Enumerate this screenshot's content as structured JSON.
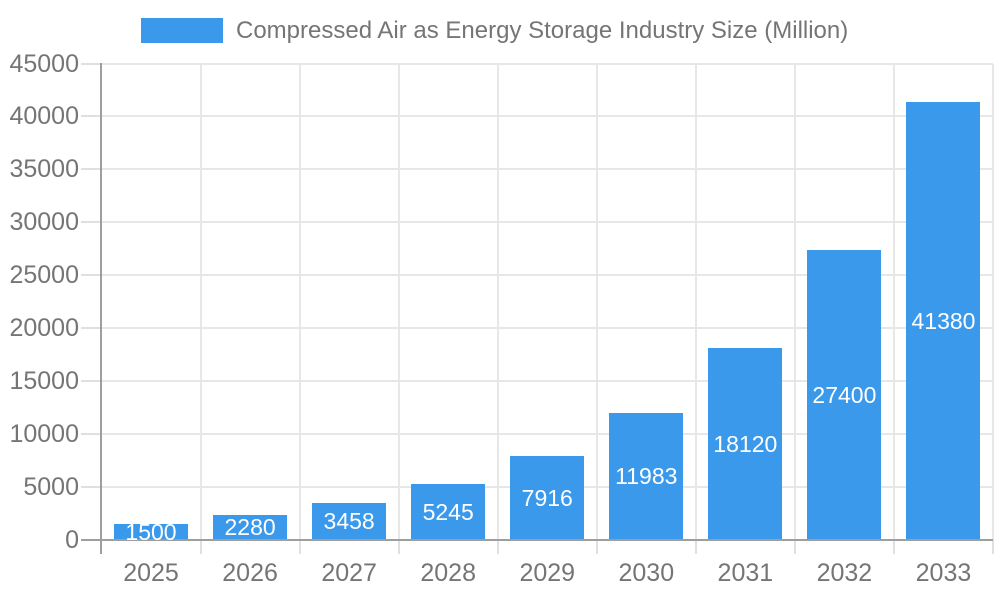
{
  "legend": {
    "label": "Compressed Air as Energy Storage Industry Size (Million)"
  },
  "chart_data": {
    "type": "bar",
    "title": "Compressed Air as Energy Storage Industry Size (Million)",
    "categories": [
      "2025",
      "2026",
      "2027",
      "2028",
      "2029",
      "2030",
      "2031",
      "2032",
      "2033"
    ],
    "values": [
      1500,
      2280,
      3458,
      5245,
      7916,
      11983,
      18120,
      27400,
      41380
    ],
    "xlabel": "",
    "ylabel": "",
    "ylim": [
      0,
      45000
    ],
    "y_tick_step": 5000,
    "y_tick_labels": [
      "0",
      "5000",
      "10000",
      "15000",
      "20000",
      "25000",
      "30000",
      "35000",
      "40000",
      "45000"
    ],
    "grid": true,
    "legend_position": "top-left",
    "value_labels": "inside-center-white",
    "colors": {
      "bar": "#3b99ec",
      "value_label": "#ffffff",
      "axis_label": "#757575",
      "axis_line": "#9e9e9e",
      "gridline": "#e7e7e7",
      "tick": "#e0e0e0"
    }
  }
}
